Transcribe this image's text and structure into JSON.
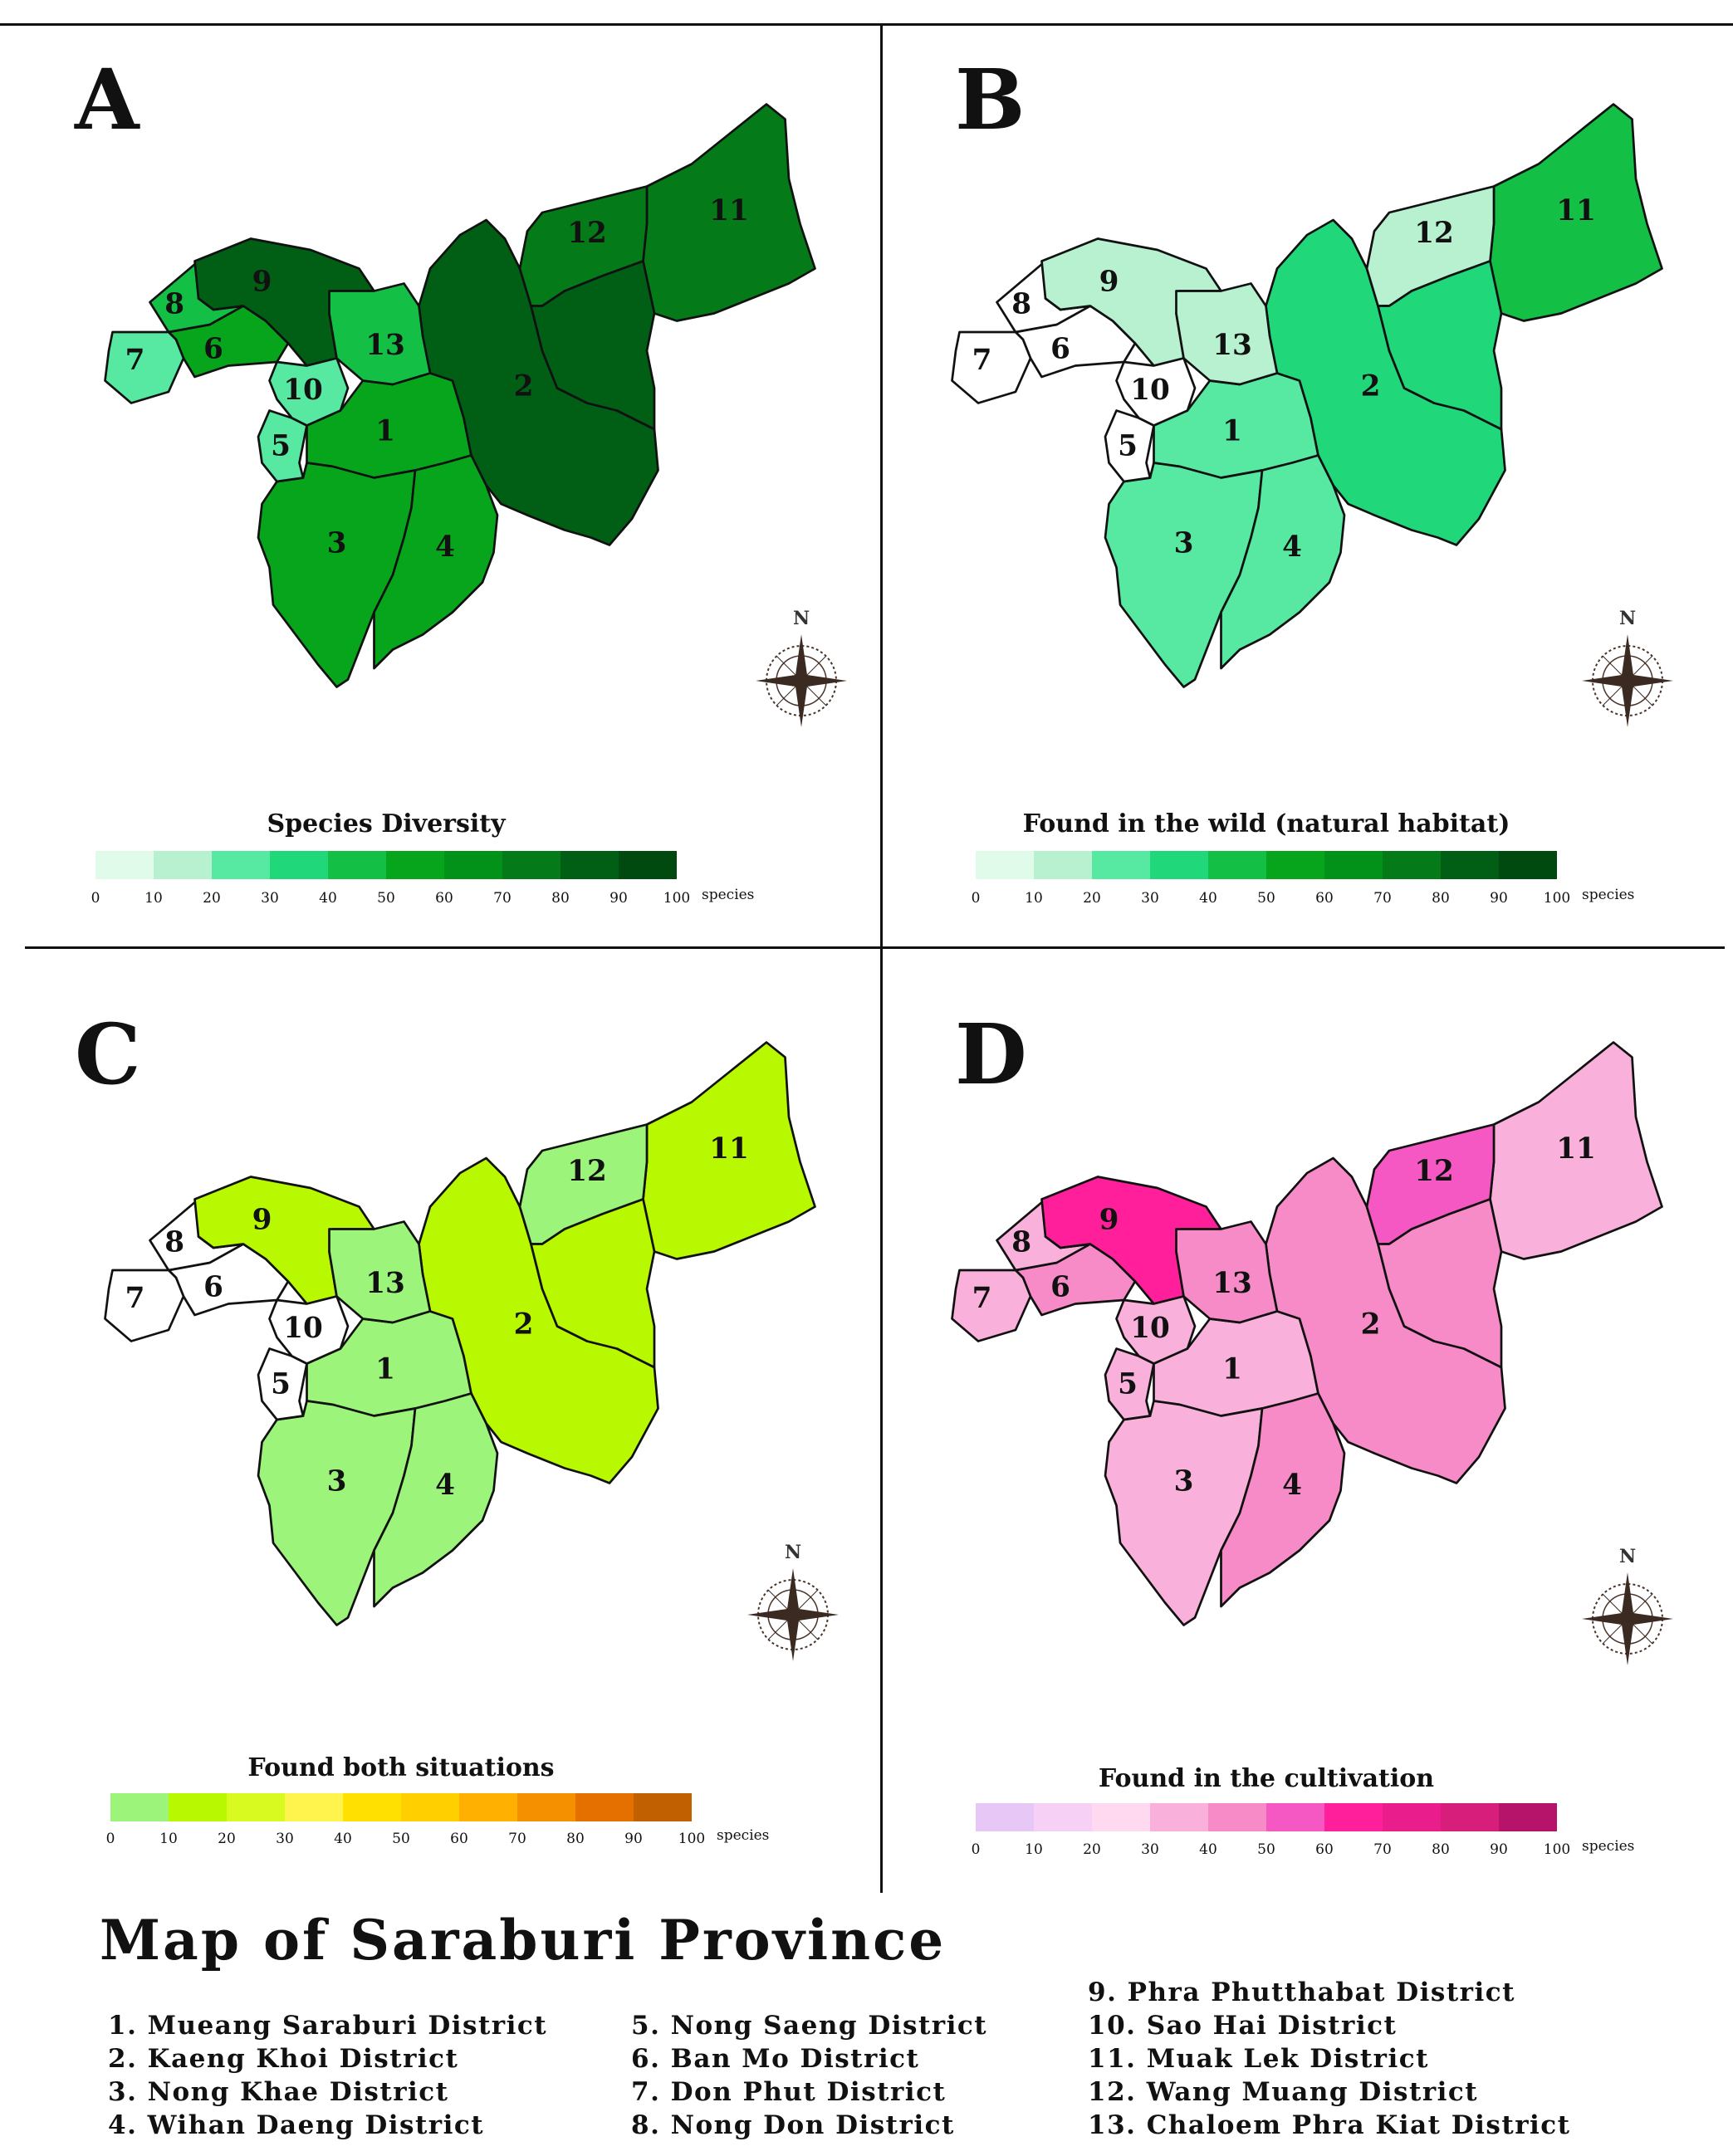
{
  "panels": [
    {
      "letter": "A",
      "legend_title": "Species Diversity",
      "legend_colors": [
        "#e0fbea",
        "#b7f1cf",
        "#57e8a1",
        "#20d77a",
        "#13c045",
        "#07a51b",
        "#02921a",
        "#057a18",
        "#005f14",
        "#004a10"
      ],
      "district_colors": {
        "1": "#07a51b",
        "2": "#005f14",
        "3": "#07a51b",
        "4": "#07a51b",
        "5": "#57e8a1",
        "6": "#07a51b",
        "7": "#57e8a1",
        "8": "#13c045",
        "9": "#005f14",
        "10": "#57e8a1",
        "11": "#057a18",
        "12": "#057a18",
        "13": "#13c045"
      }
    },
    {
      "letter": "B",
      "legend_title": "Found in the wild (natural habitat)",
      "legend_colors": [
        "#e0fbea",
        "#b7f1cf",
        "#57e8a1",
        "#20d77a",
        "#13c045",
        "#07a51b",
        "#02921a",
        "#057a18",
        "#005f14",
        "#004a10"
      ],
      "district_colors": {
        "1": "#57e8a1",
        "2": "#20d77a",
        "3": "#57e8a1",
        "4": "#57e8a1",
        "5": "#ffffff",
        "6": "#ffffff",
        "7": "#ffffff",
        "8": "#ffffff",
        "9": "#b7f1cf",
        "10": "#ffffff",
        "11": "#13c045",
        "12": "#b7f1cf",
        "13": "#b7f1cf"
      }
    },
    {
      "letter": "C",
      "legend_title": "Found both situations",
      "legend_colors": [
        "#9cf57a",
        "#b8f800",
        "#d8fa20",
        "#fff34d",
        "#ffe000",
        "#ffcf00",
        "#ffb000",
        "#f59000",
        "#e57000",
        "#c06000"
      ],
      "district_colors": {
        "1": "#9cf57a",
        "2": "#b8f800",
        "3": "#9cf57a",
        "4": "#9cf57a",
        "5": "#ffffff",
        "6": "#ffffff",
        "7": "#ffffff",
        "8": "#ffffff",
        "9": "#b8f800",
        "10": "#ffffff",
        "11": "#b8f800",
        "12": "#9cf57a",
        "13": "#9cf57a"
      }
    },
    {
      "letter": "D",
      "legend_title": "Found in the cultivation",
      "legend_colors": [
        "#e6c7f5",
        "#f7d0f5",
        "#ffd9ef",
        "#f9b1dc",
        "#f78bc7",
        "#f658c3",
        "#ff1f9a",
        "#e91e8c",
        "#d61e7a",
        "#b5146a"
      ],
      "district_colors": {
        "1": "#f9b1dc",
        "2": "#f78bc7",
        "3": "#f9b1dc",
        "4": "#f78bc7",
        "5": "#f9b1dc",
        "6": "#f78bc7",
        "7": "#f9b1dc",
        "8": "#f9b1dc",
        "9": "#ff1f9a",
        "10": "#f9b1dc",
        "11": "#f9b1dc",
        "12": "#f658c3",
        "13": "#f78bc7"
      }
    }
  ],
  "legend_ticks": [
    "0",
    "10",
    "20",
    "30",
    "40",
    "50",
    "60",
    "70",
    "80",
    "90",
    "100"
  ],
  "legend_unit": "species",
  "compass_label": "N",
  "title": "Map of Saraburi Province",
  "districts": [
    "1.  Mueang Saraburi District",
    "2.  Kaeng Khoi District",
    "3.  Nong Khae District",
    "4.  Wihan Daeng District",
    "5.  Nong Saeng District",
    "6.  Ban Mo District",
    "7.  Don Phut District",
    "8.  Nong Don District",
    "9.  Phra Phutthabat District",
    "10. Sao Hai District",
    "11. Muak Lek District",
    "12. Wang Muang District",
    "13. Chaloem Phra Kiat District"
  ]
}
